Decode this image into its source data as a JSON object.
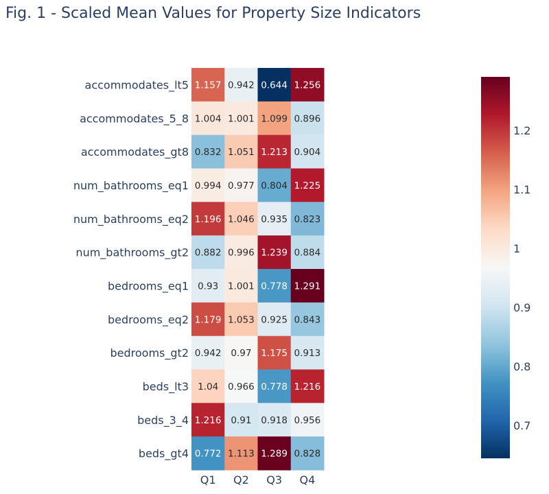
{
  "chart_data": {
    "type": "heatmap",
    "title": "Fig. 1 - Scaled Mean Values for Property Size Indicators",
    "x": [
      "Q1",
      "Q2",
      "Q3",
      "Q4"
    ],
    "y": [
      "accommodates_lt5",
      "accommodates_5_8",
      "accommodates_gt8",
      "num_bathrooms_eq1",
      "num_bathrooms_eq2",
      "num_bathrooms_gt2",
      "bedrooms_eq1",
      "bedrooms_eq2",
      "bedrooms_gt2",
      "beds_lt3",
      "beds_3_4",
      "beds_gt4"
    ],
    "z": [
      [
        1.157,
        0.942,
        0.644,
        1.256
      ],
      [
        1.004,
        1.001,
        1.099,
        0.896
      ],
      [
        0.832,
        1.051,
        1.213,
        0.904
      ],
      [
        0.994,
        0.977,
        0.804,
        1.225
      ],
      [
        1.196,
        1.046,
        0.935,
        0.823
      ],
      [
        0.882,
        0.996,
        1.239,
        0.884
      ],
      [
        0.93,
        1.001,
        0.778,
        1.291
      ],
      [
        1.179,
        1.053,
        0.925,
        0.843
      ],
      [
        0.942,
        0.97,
        1.175,
        0.913
      ],
      [
        1.04,
        0.966,
        0.778,
        1.216
      ],
      [
        1.216,
        0.91,
        0.918,
        0.956
      ],
      [
        0.772,
        1.113,
        1.289,
        0.828
      ]
    ],
    "colorscale": "RdBu reversed (blue = low, red = high)",
    "colorbar": {
      "tick_labels": [
        "0.7",
        "0.8",
        "0.9",
        "1",
        "1.1",
        "1.2"
      ],
      "range": [
        0.644,
        1.291
      ]
    },
    "xlabel": "",
    "ylabel": "",
    "grid": false
  }
}
